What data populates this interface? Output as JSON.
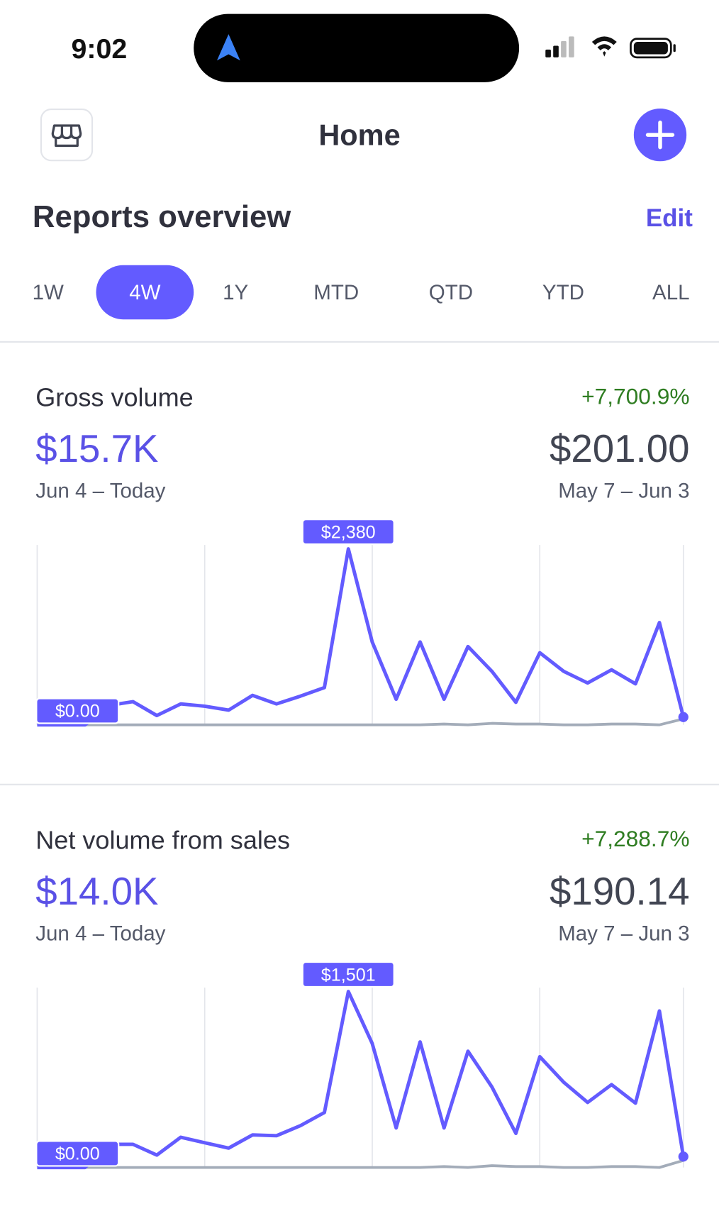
{
  "status_bar": {
    "time": "9:02"
  },
  "header": {
    "title": "Home"
  },
  "section": {
    "title": "Reports overview",
    "action": "Edit"
  },
  "tabs": {
    "items": [
      "1W",
      "4W",
      "1Y",
      "MTD",
      "QTD",
      "YTD",
      "ALL"
    ],
    "selected": "4W"
  },
  "cards": [
    {
      "title": "Gross volume",
      "value": "$15.7K",
      "period": "Jun 4 – Today",
      "change": "+7,700.9%",
      "previous_value": "$201.00",
      "previous_period": "May 7 – Jun 3",
      "chart_data": {
        "type": "line",
        "series": [
          {
            "color": "#635bff",
            "values": [
              0,
              0,
              0,
              262,
              314,
              126,
              283,
              252,
              199,
              398,
              283,
              388,
              503,
              2380,
              1121,
              346,
              1121,
              346,
              1059,
              723,
              304,
              975,
              723,
              566,
              744,
              555,
              1383,
              105
            ],
            "value_labels": [
              "$0.00",
              null,
              null,
              null,
              null,
              null,
              null,
              null,
              null,
              null,
              null,
              null,
              null,
              "$2,380",
              null,
              null,
              null,
              null,
              null,
              null,
              null,
              null,
              null,
              null,
              null,
              null,
              null,
              null
            ]
          },
          {
            "color": "#a3acb9",
            "values": [
              0,
              0,
              0,
              0,
              0,
              0,
              0,
              0,
              0,
              0,
              0,
              0,
              0,
              0,
              0,
              0,
              0,
              10,
              0,
              20,
              10,
              10,
              0,
              0,
              10,
              10,
              0,
              80
            ]
          }
        ]
      }
    },
    {
      "title": "Net volume from sales",
      "value": "$14.0K",
      "period": "Jun 4 – Today",
      "change": "+7,288.7%",
      "previous_value": "$190.14",
      "previous_period": "May 7 – Jun 3",
      "chart_data": {
        "type": "line",
        "series": [
          {
            "color": "#635bff",
            "values": [
              0,
              0,
              0,
              198,
              198,
              106,
              258,
              211,
              165,
              278,
              271,
              357,
              469,
              1501,
              1058,
              337,
              1071,
              337,
              992,
              687,
              291,
              945,
              727,
              555,
              707,
              549,
              1335,
              93
            ],
            "value_labels": [
              "$0.00",
              null,
              null,
              null,
              null,
              null,
              null,
              null,
              null,
              null,
              null,
              null,
              null,
              "$1,501",
              null,
              null,
              null,
              null,
              null,
              null,
              null,
              null,
              null,
              null,
              null,
              null,
              null,
              null
            ]
          },
          {
            "color": "#a3acb9",
            "values": [
              0,
              0,
              0,
              0,
              0,
              0,
              0,
              0,
              0,
              0,
              0,
              0,
              0,
              0,
              0,
              0,
              0,
              8,
              0,
              15,
              8,
              8,
              0,
              0,
              8,
              8,
              0,
              60
            ]
          }
        ]
      }
    }
  ]
}
